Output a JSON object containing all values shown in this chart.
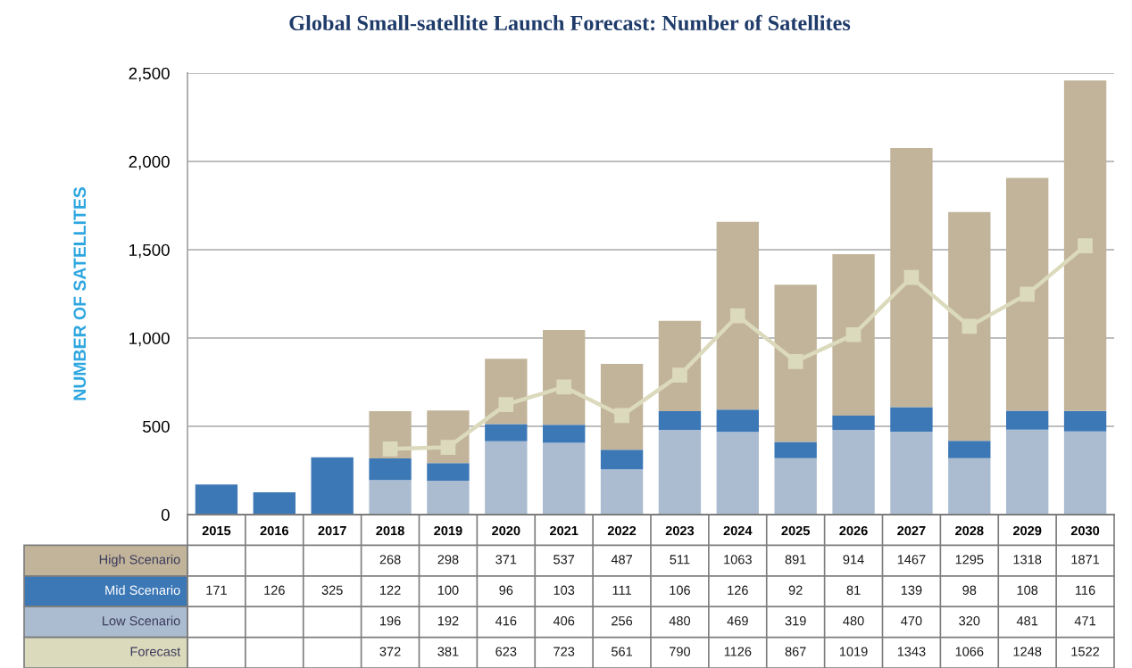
{
  "chart_data": {
    "type": "bar",
    "title": "Global Small-satellite Launch Forecast: Number of Satellites",
    "ylabel": "NUMBER OF SATELLITES",
    "categories": [
      "2015",
      "2016",
      "2017",
      "2018",
      "2019",
      "2020",
      "2021",
      "2022",
      "2023",
      "2024",
      "2025",
      "2026",
      "2027",
      "2028",
      "2029",
      "2030"
    ],
    "stacked": true,
    "series": [
      {
        "name": "Low Scenario",
        "color": "#abbcd0",
        "values": [
          null,
          null,
          null,
          196,
          192,
          416,
          406,
          256,
          480,
          469,
          319,
          480,
          470,
          320,
          481,
          471
        ]
      },
      {
        "name": "Mid Scenario",
        "color": "#3d78b6",
        "values": [
          171,
          126,
          325,
          122,
          100,
          96,
          103,
          111,
          106,
          126,
          92,
          81,
          139,
          98,
          108,
          116
        ]
      },
      {
        "name": "High Scenario",
        "color": "#c2b49a",
        "values": [
          null,
          null,
          null,
          268,
          298,
          371,
          537,
          487,
          511,
          1063,
          891,
          914,
          1467,
          1295,
          1318,
          1871
        ]
      },
      {
        "name": "Forecast",
        "type": "line",
        "color": "#dcdabc",
        "values": [
          null,
          null,
          null,
          372,
          381,
          623,
          723,
          561,
          790,
          1126,
          867,
          1019,
          1343,
          1066,
          1248,
          1522
        ]
      }
    ],
    "ylim": [
      0,
      2500
    ],
    "yticks": [
      0,
      500,
      {
        "value": 1000,
        "label": "1,000"
      },
      {
        "value": 1500,
        "label": "1,500"
      },
      {
        "value": 2000,
        "label": "2,000"
      },
      {
        "value": 2500,
        "label": "2,500"
      }
    ],
    "grid": "y",
    "legend": false,
    "marker": "square",
    "line_style": "solid",
    "data_labels": true
  }
}
